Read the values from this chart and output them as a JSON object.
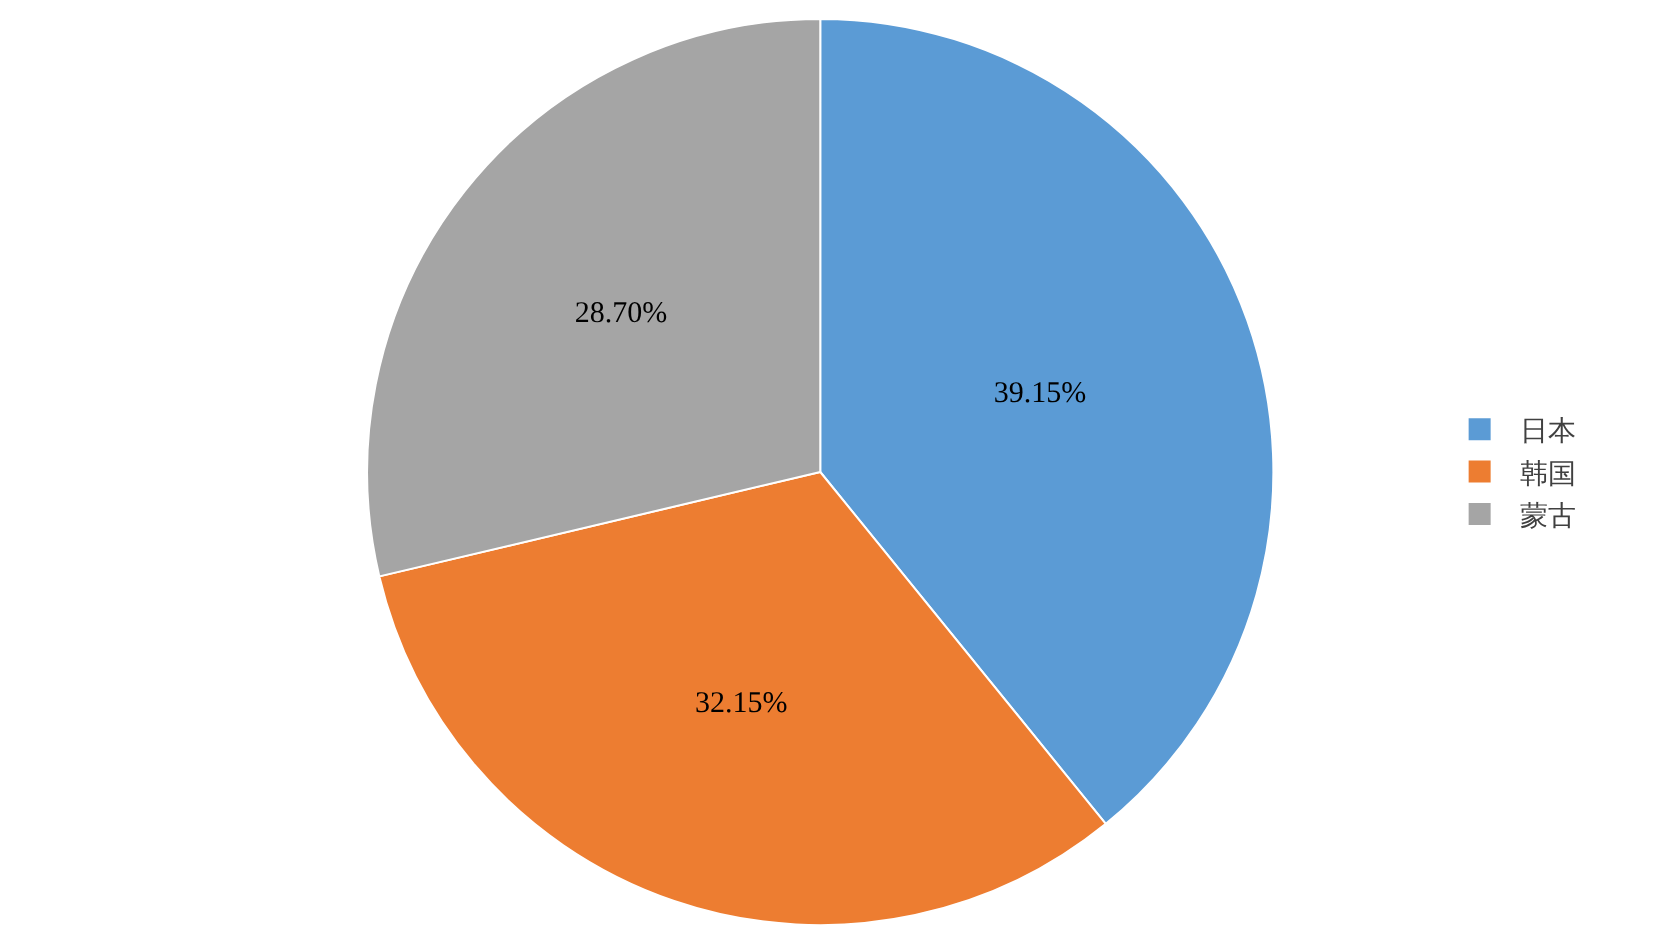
{
  "chart_data": {
    "type": "pie",
    "categories": [
      "日本",
      "韩国",
      "蒙古"
    ],
    "values": [
      39.15,
      32.15,
      28.7
    ],
    "colors": [
      "#5b9bd5",
      "#ed7d31",
      "#a5a5a5"
    ],
    "value_labels": [
      "39.15%",
      "32.15%",
      "28.70%"
    ],
    "legend": "right"
  }
}
